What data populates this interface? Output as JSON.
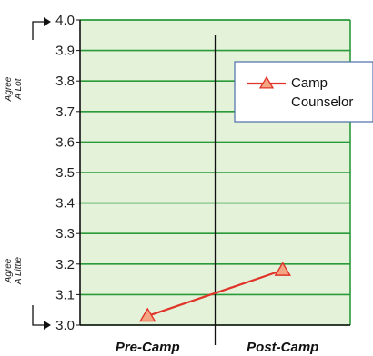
{
  "chart_data": {
    "type": "line",
    "categories": [
      "Pre-Camp",
      "Post-Camp"
    ],
    "series": [
      {
        "name": "Camp Counselor",
        "values": [
          3.03,
          3.18
        ],
        "color": "#e0342a",
        "marker": "triangle",
        "marker_fill": "#f4a582"
      }
    ],
    "ylim": [
      3.0,
      4.0
    ],
    "y_ticks": [
      "3.0",
      "3.1",
      "3.2",
      "3.3",
      "3.4",
      "3.5",
      "3.6",
      "3.7",
      "3.8",
      "3.9",
      "4.0"
    ],
    "y_side_labels": {
      "top": [
        "Agree",
        "A Lot"
      ],
      "bottom": [
        "Agree",
        "A Little"
      ]
    },
    "grid": true,
    "legend_position": "top-right",
    "legend_lines": [
      "Camp",
      "Counselor"
    ],
    "colors": {
      "plot_background": "#e3f2d9",
      "grid": "#2a9a3a",
      "axis": "#111111",
      "divider": "#111111",
      "legend_border": "#4b6ea8"
    }
  }
}
